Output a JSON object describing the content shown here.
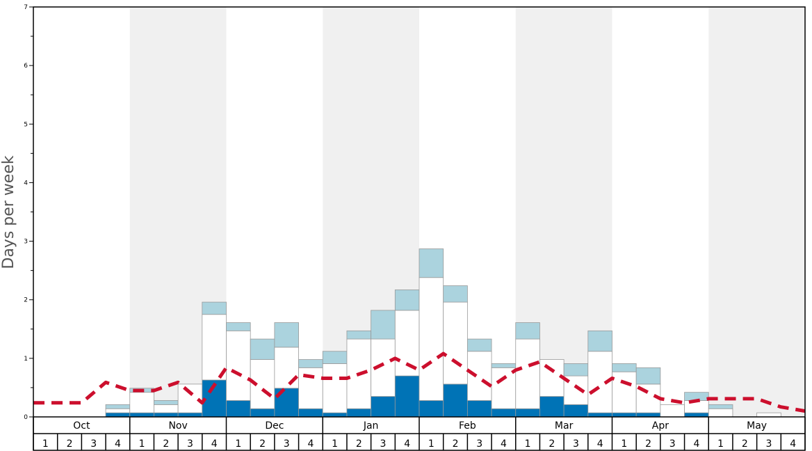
{
  "chart_data": {
    "type": "bar",
    "stacked": true,
    "ylabel": "Days per week",
    "ylim": [
      0,
      7
    ],
    "yticks": [
      "0",
      "1",
      "2",
      "3",
      "4",
      "5",
      "6",
      "7"
    ],
    "months": [
      "Oct",
      "Nov",
      "Dec",
      "Jan",
      "Feb",
      "Mar",
      "Apr",
      "May"
    ],
    "weeks": [
      "1",
      "2",
      "3",
      "4"
    ],
    "shaded_months": [
      "Nov",
      "Jan",
      "Mar",
      "May"
    ],
    "colors": {
      "dark": "#0073b6",
      "white": "#ffffff",
      "light": "#abd3de",
      "line": "#cc0f2d",
      "shade": "#f0f0f0",
      "bar_edge": "#999999"
    },
    "series": [
      {
        "values": [
          0,
          0,
          0,
          0.07,
          0.07,
          0.07,
          0.07,
          0.63,
          0.28,
          0.14,
          0.49,
          0.14,
          0.07,
          0.14,
          0.35,
          0.7,
          0.28,
          0.56,
          0.28,
          0.14,
          0.14,
          0.35,
          0.21,
          0.07,
          0.07,
          0.07,
          0,
          0.07,
          0,
          0,
          0,
          0
        ]
      },
      {
        "values": [
          0,
          0,
          0,
          0.07,
          0.35,
          0.14,
          0.49,
          1.12,
          1.19,
          0.84,
          0.7,
          0.7,
          0.84,
          1.19,
          0.98,
          1.12,
          2.1,
          1.4,
          0.84,
          0.7,
          1.19,
          0.63,
          0.49,
          1.05,
          0.7,
          0.49,
          0.21,
          0.21,
          0.14,
          0,
          0.07,
          0
        ]
      },
      {
        "values": [
          0,
          0,
          0,
          0.07,
          0.07,
          0.07,
          0,
          0.21,
          0.14,
          0.35,
          0.42,
          0.14,
          0.21,
          0.14,
          0.49,
          0.35,
          0.49,
          0.28,
          0.21,
          0.07,
          0.28,
          0,
          0.21,
          0.35,
          0.14,
          0.28,
          0,
          0.14,
          0.07,
          0,
          0,
          0
        ]
      }
    ],
    "trend_line": [
      0.24,
      0.24,
      0.24,
      0.59,
      0.45,
      0.45,
      0.59,
      0.24,
      0.84,
      0.63,
      0.31,
      0.72,
      0.66,
      0.66,
      0.8,
      1.0,
      0.8,
      1.08,
      0.8,
      0.52,
      0.8,
      0.94,
      0.66,
      0.38,
      0.66,
      0.52,
      0.31,
      0.24,
      0.31,
      0.31,
      0.31,
      0.17,
      0.1
    ]
  }
}
